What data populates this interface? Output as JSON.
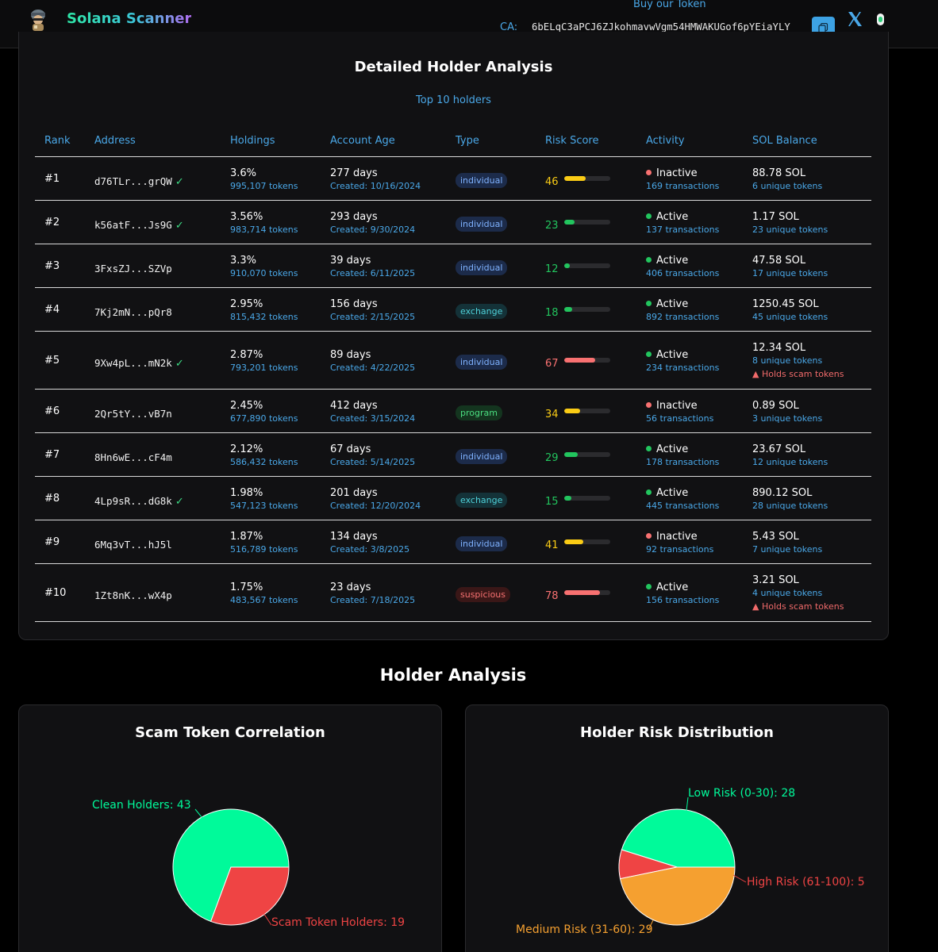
{
  "header": {
    "brand": "Solana Scanner",
    "buy_link": "Buy our Token",
    "ca_label": "CA:",
    "ca_value": "6bELqC3aPCJ6ZJkohmavwVgm54HMWAKUGof6pYEiaYLY",
    "icons": [
      "avatar-logo-icon",
      "copy-icon",
      "x-logo-icon",
      "theme-toggle-icon"
    ]
  },
  "detail": {
    "title": "Detailed Holder Analysis",
    "subtitle": "Top 10 holders",
    "columns": [
      "Rank",
      "Address",
      "Holdings",
      "Account Age",
      "Type",
      "Risk Score",
      "Activity",
      "SOL Balance"
    ],
    "rows": [
      {
        "rank": "#1",
        "address": "d76TLr...grQW",
        "verified": true,
        "holding_pct": "3.6%",
        "tokens": "995,107 tokens",
        "age": "277 days",
        "created": "Created: 10/16/2024",
        "type": "individual",
        "score": 46,
        "status": "Inactive",
        "tx": "169 transactions",
        "sol": "88.78 SOL",
        "unique": "6 unique tokens",
        "scam": ""
      },
      {
        "rank": "#2",
        "address": "k56atF...Js9G",
        "verified": true,
        "holding_pct": "3.56%",
        "tokens": "983,714 tokens",
        "age": "293 days",
        "created": "Created: 9/30/2024",
        "type": "individual",
        "score": 23,
        "status": "Active",
        "tx": "137 transactions",
        "sol": "1.17 SOL",
        "unique": "23 unique tokens",
        "scam": ""
      },
      {
        "rank": "#3",
        "address": "3FxsZJ...SZVp",
        "verified": false,
        "holding_pct": "3.3%",
        "tokens": "910,070 tokens",
        "age": "39 days",
        "created": "Created: 6/11/2025",
        "type": "individual",
        "score": 12,
        "status": "Active",
        "tx": "406 transactions",
        "sol": "47.58 SOL",
        "unique": "17 unique tokens",
        "scam": ""
      },
      {
        "rank": "#4",
        "address": "7Kj2mN...pQr8",
        "verified": false,
        "holding_pct": "2.95%",
        "tokens": "815,432 tokens",
        "age": "156 days",
        "created": "Created: 2/15/2025",
        "type": "exchange",
        "score": 18,
        "status": "Active",
        "tx": "892 transactions",
        "sol": "1250.45 SOL",
        "unique": "45 unique tokens",
        "scam": ""
      },
      {
        "rank": "#5",
        "address": "9Xw4pL...mN2k",
        "verified": true,
        "holding_pct": "2.87%",
        "tokens": "793,201 tokens",
        "age": "89 days",
        "created": "Created: 4/22/2025",
        "type": "individual",
        "score": 67,
        "status": "Active",
        "tx": "234 transactions",
        "sol": "12.34 SOL",
        "unique": "8 unique tokens",
        "scam": "▲ Holds scam tokens"
      },
      {
        "rank": "#6",
        "address": "2Qr5tY...vB7n",
        "verified": false,
        "holding_pct": "2.45%",
        "tokens": "677,890 tokens",
        "age": "412 days",
        "created": "Created: 3/15/2024",
        "type": "program",
        "score": 34,
        "status": "Inactive",
        "tx": "56 transactions",
        "sol": "0.89 SOL",
        "unique": "3 unique tokens",
        "scam": ""
      },
      {
        "rank": "#7",
        "address": "8Hn6wE...cF4m",
        "verified": false,
        "holding_pct": "2.12%",
        "tokens": "586,432 tokens",
        "age": "67 days",
        "created": "Created: 5/14/2025",
        "type": "individual",
        "score": 29,
        "status": "Active",
        "tx": "178 transactions",
        "sol": "23.67 SOL",
        "unique": "12 unique tokens",
        "scam": ""
      },
      {
        "rank": "#8",
        "address": "4Lp9sR...dG8k",
        "verified": true,
        "holding_pct": "1.98%",
        "tokens": "547,123 tokens",
        "age": "201 days",
        "created": "Created: 12/20/2024",
        "type": "exchange",
        "score": 15,
        "status": "Active",
        "tx": "445 transactions",
        "sol": "890.12 SOL",
        "unique": "28 unique tokens",
        "scam": ""
      },
      {
        "rank": "#9",
        "address": "6Mq3vT...hJ5l",
        "verified": false,
        "holding_pct": "1.87%",
        "tokens": "516,789 tokens",
        "age": "134 days",
        "created": "Created: 3/8/2025",
        "type": "individual",
        "score": 41,
        "status": "Inactive",
        "tx": "92 transactions",
        "sol": "5.43 SOL",
        "unique": "7 unique tokens",
        "scam": ""
      },
      {
        "rank": "#10",
        "address": "1Zt8nK...wX4p",
        "verified": false,
        "holding_pct": "1.75%",
        "tokens": "483,567 tokens",
        "age": "23 days",
        "created": "Created: 7/18/2025",
        "type": "suspicious",
        "score": 78,
        "status": "Active",
        "tx": "156 transactions",
        "sol": "3.21 SOL",
        "unique": "4 unique tokens",
        "scam": "▲ Holds scam tokens"
      }
    ]
  },
  "analysis": {
    "title": "Holder Analysis"
  },
  "colors": {
    "accent_blue": "#4aa8e8",
    "green": "#22c55e",
    "yellow": "#facc15",
    "red": "#f87171",
    "pie_clean": "#00fa9a",
    "pie_scam": "#ef4444",
    "pie_medium": "#f5a030"
  },
  "chart_data": [
    {
      "type": "pie",
      "title": "Scam Token Correlation",
      "categories": [
        "Clean Holders",
        "Scam Token Holders"
      ],
      "values": [
        43,
        19
      ],
      "colors": [
        "#00fa9a",
        "#ef4444"
      ],
      "labels": [
        "Clean Holders: 43",
        "Scam Token Holders: 19"
      ]
    },
    {
      "type": "pie",
      "title": "Holder Risk Distribution",
      "categories": [
        "Low Risk (0-30)",
        "High Risk (61-100)",
        "Medium Risk (31-60)"
      ],
      "values": [
        28,
        5,
        29
      ],
      "colors": [
        "#00fa9a",
        "#ef4444",
        "#f5a030"
      ],
      "labels": [
        "Low Risk (0-30): 28",
        "High Risk (61-100): 5",
        "Medium Risk (31-60): 29"
      ]
    }
  ]
}
